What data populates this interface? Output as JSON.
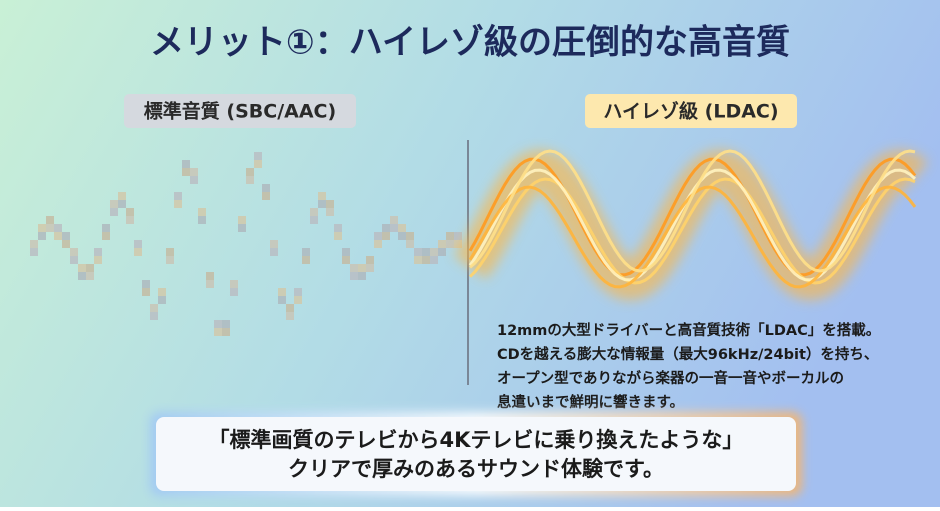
{
  "title": "メリット①：ハイレゾ級の圧倒的な高音質",
  "standard": {
    "label": "標準音質 (SBC/AAC)"
  },
  "hires": {
    "label": "ハイレゾ級 (LDAC)",
    "description": [
      "12mmの大型ドライバーと高音質技術「LDAC」を搭載。",
      "CDを越える膨大な情報量（最大96kHz/24bit）を持ち、",
      "オープン型でありながら楽器の一音一音やボーカルの",
      "息遣いまで鮮明に響きます。"
    ]
  },
  "callout": [
    "「標準画質のテレビから4Kテレビに乗り換えたような」",
    "クリアで厚みのあるサウンド体験です。"
  ]
}
